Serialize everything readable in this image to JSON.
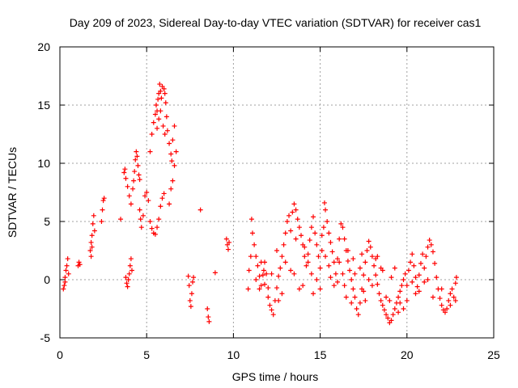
{
  "chart_data": {
    "type": "scatter",
    "title": "Day 209 of 2023, Sidereal Day-to-day VTEC variation (SDTVAR) for receiver cas1",
    "xlabel": "GPS time / hours",
    "ylabel": "SDTVAR / TECUs",
    "xlim": [
      0,
      25
    ],
    "ylim": [
      -5,
      20
    ],
    "xticks": [
      0,
      5,
      10,
      15,
      20,
      25
    ],
    "yticks": [
      -5,
      0,
      5,
      10,
      15,
      20
    ],
    "grid": true,
    "marker": "+",
    "color": "#ff0000",
    "series": [
      {
        "name": "SDTVAR",
        "points": [
          [
            0.2,
            -0.8
          ],
          [
            0.25,
            -0.5
          ],
          [
            0.3,
            0.2
          ],
          [
            0.35,
            0.8
          ],
          [
            0.4,
            1.2
          ],
          [
            0.45,
            1.8
          ],
          [
            0.5,
            0.5
          ],
          [
            0.3,
            -0.2
          ],
          [
            1.05,
            1.2
          ],
          [
            1.1,
            1.5
          ],
          [
            1.15,
            1.3
          ],
          [
            1.75,
            2.5
          ],
          [
            1.8,
            3.2
          ],
          [
            1.85,
            3.8
          ],
          [
            1.9,
            4.8
          ],
          [
            1.95,
            5.5
          ],
          [
            2.0,
            4.2
          ],
          [
            1.8,
            2.0
          ],
          [
            1.85,
            2.8
          ],
          [
            2.4,
            5.0
          ],
          [
            2.45,
            6.0
          ],
          [
            2.5,
            6.8
          ],
          [
            2.55,
            7.0
          ],
          [
            3.5,
            5.2
          ],
          [
            3.7,
            9.2
          ],
          [
            3.75,
            9.5
          ],
          [
            3.8,
            8.7
          ],
          [
            3.9,
            8.0
          ],
          [
            4.0,
            7.2
          ],
          [
            4.1,
            6.5
          ],
          [
            4.2,
            7.8
          ],
          [
            4.25,
            8.5
          ],
          [
            4.3,
            9.3
          ],
          [
            4.35,
            10.3
          ],
          [
            4.4,
            11.0
          ],
          [
            4.45,
            10.6
          ],
          [
            4.5,
            9.8
          ],
          [
            4.55,
            9.0
          ],
          [
            4.6,
            8.6
          ],
          [
            3.8,
            0.2
          ],
          [
            3.85,
            -0.3
          ],
          [
            3.9,
            -0.6
          ],
          [
            3.95,
            0.0
          ],
          [
            4.0,
            0.5
          ],
          [
            4.05,
            1.2
          ],
          [
            4.1,
            1.8
          ],
          [
            4.15,
            0.8
          ],
          [
            4.6,
            6.0
          ],
          [
            4.65,
            5.2
          ],
          [
            4.7,
            4.5
          ],
          [
            4.8,
            5.5
          ],
          [
            4.9,
            7.2
          ],
          [
            5.0,
            7.5
          ],
          [
            5.1,
            6.8
          ],
          [
            5.2,
            5.0
          ],
          [
            5.3,
            4.4
          ],
          [
            5.4,
            4.0
          ],
          [
            5.5,
            3.9
          ],
          [
            5.6,
            4.5
          ],
          [
            5.7,
            5.2
          ],
          [
            5.8,
            6.3
          ],
          [
            5.9,
            7.0
          ],
          [
            6.0,
            7.4
          ],
          [
            5.2,
            11.0
          ],
          [
            5.3,
            12.5
          ],
          [
            5.4,
            13.5
          ],
          [
            5.5,
            14.2
          ],
          [
            5.55,
            15.0
          ],
          [
            5.6,
            14.5
          ],
          [
            5.65,
            15.5
          ],
          [
            5.7,
            16.0
          ],
          [
            5.75,
            16.8
          ],
          [
            5.8,
            16.2
          ],
          [
            5.85,
            15.6
          ],
          [
            5.9,
            16.6
          ],
          [
            6.0,
            16.4
          ],
          [
            6.05,
            16.0
          ],
          [
            6.1,
            15.2
          ],
          [
            6.15,
            14.0
          ],
          [
            6.2,
            12.8
          ],
          [
            6.3,
            11.7
          ],
          [
            6.4,
            10.8
          ],
          [
            6.5,
            12.0
          ],
          [
            6.6,
            13.2
          ],
          [
            6.7,
            11.0
          ],
          [
            6.6,
            9.8
          ],
          [
            6.5,
            8.5
          ],
          [
            6.4,
            7.8
          ],
          [
            6.3,
            6.5
          ],
          [
            6.45,
            10.2
          ],
          [
            5.6,
            13.0
          ],
          [
            5.7,
            13.8
          ],
          [
            5.8,
            14.5
          ],
          [
            5.95,
            13.2
          ],
          [
            6.05,
            12.5
          ],
          [
            7.4,
            0.3
          ],
          [
            7.45,
            -0.5
          ],
          [
            7.5,
            -1.8
          ],
          [
            7.55,
            -2.3
          ],
          [
            7.6,
            -1.2
          ],
          [
            7.65,
            -0.2
          ],
          [
            7.7,
            0.2
          ],
          [
            8.1,
            6.0
          ],
          [
            8.95,
            0.6
          ],
          [
            8.5,
            -2.5
          ],
          [
            8.55,
            -3.2
          ],
          [
            8.6,
            -3.6
          ],
          [
            9.6,
            3.5
          ],
          [
            9.65,
            3.0
          ],
          [
            9.7,
            2.6
          ],
          [
            9.75,
            3.2
          ],
          [
            10.85,
            -0.8
          ],
          [
            10.9,
            0.8
          ],
          [
            11.0,
            2.0
          ],
          [
            11.05,
            5.2
          ],
          [
            11.1,
            4.0
          ],
          [
            11.2,
            3.0
          ],
          [
            11.3,
            2.0
          ],
          [
            11.4,
            1.2
          ],
          [
            11.5,
            0.3
          ],
          [
            11.6,
            1.5
          ],
          [
            11.7,
            0.4
          ],
          [
            11.8,
            -0.4
          ],
          [
            11.9,
            0.5
          ],
          [
            12.0,
            -0.7
          ],
          [
            11.5,
            -0.8
          ],
          [
            11.6,
            -0.5
          ],
          [
            11.75,
            0.8
          ],
          [
            12.0,
            -1.5
          ],
          [
            12.1,
            -2.2
          ],
          [
            12.2,
            -2.6
          ],
          [
            12.3,
            -3.0
          ],
          [
            12.4,
            -1.8
          ],
          [
            12.5,
            -0.7
          ],
          [
            12.6,
            0.3
          ],
          [
            12.7,
            1.0
          ],
          [
            12.8,
            2.0
          ],
          [
            12.9,
            3.0
          ],
          [
            13.0,
            4.0
          ],
          [
            13.1,
            5.0
          ],
          [
            13.2,
            5.5
          ],
          [
            13.3,
            4.2
          ],
          [
            13.4,
            5.8
          ],
          [
            13.5,
            6.5
          ],
          [
            13.6,
            6.0
          ],
          [
            13.7,
            5.2
          ],
          [
            13.8,
            4.5
          ],
          [
            13.9,
            3.8
          ],
          [
            14.0,
            3.0
          ],
          [
            14.1,
            2.0
          ],
          [
            14.2,
            1.2
          ],
          [
            14.3,
            2.2
          ],
          [
            14.4,
            3.4
          ],
          [
            14.5,
            4.5
          ],
          [
            14.6,
            5.4
          ],
          [
            14.7,
            4.0
          ],
          [
            14.8,
            3.0
          ],
          [
            14.9,
            2.0
          ],
          [
            15.0,
            1.0
          ],
          [
            15.1,
            2.5
          ],
          [
            15.2,
            4.5
          ],
          [
            15.25,
            6.6
          ],
          [
            15.3,
            6.0
          ],
          [
            15.4,
            5.0
          ],
          [
            15.5,
            4.0
          ],
          [
            15.6,
            3.2
          ],
          [
            15.7,
            2.4
          ],
          [
            15.8,
            1.5
          ],
          [
            15.9,
            0.5
          ],
          [
            16.0,
            1.8
          ],
          [
            16.1,
            3.5
          ],
          [
            16.2,
            4.8
          ],
          [
            16.3,
            4.5
          ],
          [
            16.4,
            3.5
          ],
          [
            16.5,
            2.5
          ],
          [
            16.6,
            1.6
          ],
          [
            16.7,
            0.8
          ],
          [
            16.8,
            0.0
          ],
          [
            16.9,
            -0.8
          ],
          [
            17.0,
            -1.5
          ],
          [
            17.1,
            -2.5
          ],
          [
            17.2,
            -3.0
          ],
          [
            17.3,
            -2.0
          ],
          [
            17.4,
            -0.8
          ],
          [
            17.5,
            0.4
          ],
          [
            17.6,
            1.5
          ],
          [
            17.7,
            2.5
          ],
          [
            17.8,
            3.3
          ],
          [
            17.9,
            2.8
          ],
          [
            18.0,
            2.0
          ],
          [
            18.1,
            1.2
          ],
          [
            18.2,
            0.4
          ],
          [
            18.3,
            -0.4
          ],
          [
            18.4,
            -1.2
          ],
          [
            18.5,
            -1.8
          ],
          [
            18.6,
            -2.2
          ],
          [
            18.7,
            -2.6
          ],
          [
            18.8,
            -3.0
          ],
          [
            18.9,
            -3.3
          ],
          [
            19.0,
            -3.7
          ],
          [
            19.1,
            -3.5
          ],
          [
            19.2,
            -3.0
          ],
          [
            19.3,
            -2.5
          ],
          [
            19.4,
            -2.0
          ],
          [
            19.5,
            -1.5
          ],
          [
            19.6,
            -1.0
          ],
          [
            19.7,
            -0.5
          ],
          [
            19.8,
            0.0
          ],
          [
            19.9,
            0.5
          ],
          [
            20.0,
            -0.5
          ],
          [
            20.1,
            0.8
          ],
          [
            20.2,
            1.5
          ],
          [
            20.3,
            2.2
          ],
          [
            20.4,
            1.2
          ],
          [
            20.5,
            0.2
          ],
          [
            20.6,
            -0.6
          ],
          [
            20.7,
            0.4
          ],
          [
            20.8,
            1.4
          ],
          [
            20.9,
            2.2
          ],
          [
            21.0,
            1.0
          ],
          [
            21.1,
            2.0
          ],
          [
            21.2,
            2.8
          ],
          [
            21.3,
            3.4
          ],
          [
            21.4,
            3.0
          ],
          [
            21.5,
            2.4
          ],
          [
            21.6,
            1.4
          ],
          [
            21.7,
            0.2
          ],
          [
            21.8,
            -0.8
          ],
          [
            21.9,
            -1.6
          ],
          [
            22.0,
            -2.2
          ],
          [
            22.1,
            -2.6
          ],
          [
            22.2,
            -2.8
          ],
          [
            22.3,
            -2.5
          ],
          [
            22.4,
            -1.8
          ],
          [
            22.5,
            -1.2
          ],
          [
            22.6,
            -0.8
          ],
          [
            22.7,
            -1.5
          ],
          [
            22.8,
            -0.3
          ],
          [
            22.85,
            0.2
          ],
          [
            12.5,
            2.5
          ],
          [
            13.0,
            1.5
          ],
          [
            13.5,
            0.5
          ],
          [
            14.0,
            -0.5
          ],
          [
            14.5,
            0.5
          ],
          [
            15.0,
            -0.8
          ],
          [
            15.5,
            1.2
          ],
          [
            16.0,
            -0.2
          ],
          [
            16.5,
            -1.5
          ],
          [
            17.0,
            0.5
          ],
          [
            17.5,
            -1.0
          ],
          [
            18.0,
            -0.5
          ],
          [
            18.5,
            1.0
          ],
          [
            19.0,
            -1.8
          ],
          [
            19.5,
            -2.8
          ],
          [
            20.0,
            -1.8
          ],
          [
            20.5,
            -1.2
          ],
          [
            21.0,
            -0.2
          ],
          [
            12.8,
            -1.2
          ],
          [
            13.3,
            0.8
          ],
          [
            13.8,
            -0.8
          ],
          [
            14.3,
            1.5
          ],
          [
            14.8,
            0.0
          ],
          [
            15.3,
            2.0
          ],
          [
            15.8,
            -0.5
          ],
          [
            16.3,
            0.5
          ],
          [
            16.8,
            -2.0
          ],
          [
            17.3,
            1.0
          ],
          [
            17.8,
            0.0
          ],
          [
            18.3,
            2.0
          ],
          [
            18.8,
            -1.5
          ],
          [
            19.3,
            1.0
          ],
          [
            19.8,
            -2.5
          ],
          [
            20.3,
            -0.2
          ],
          [
            21.5,
            -1.5
          ],
          [
            22.0,
            -0.8
          ],
          [
            14.6,
            -1.2
          ],
          [
            15.6,
            0.2
          ],
          [
            16.6,
            2.5
          ],
          [
            17.6,
            -1.8
          ],
          [
            18.6,
            0.8
          ],
          [
            19.6,
            -2.0
          ],
          [
            11.3,
            0.0
          ],
          [
            11.8,
            1.5
          ],
          [
            12.2,
            0.5
          ],
          [
            12.6,
            -1.8
          ],
          [
            13.6,
            3.5
          ],
          [
            14.1,
            2.8
          ],
          [
            15.1,
            3.8
          ],
          [
            16.1,
            1.5
          ],
          [
            16.4,
            -0.5
          ],
          [
            16.9,
            1.8
          ],
          [
            17.4,
            2.2
          ],
          [
            18.2,
            1.8
          ],
          [
            19.1,
            0.2
          ],
          [
            20.7,
            -1.0
          ],
          [
            21.2,
            0.0
          ],
          [
            22.5,
            -2.2
          ],
          [
            22.8,
            -1.8
          ]
        ]
      }
    ]
  }
}
